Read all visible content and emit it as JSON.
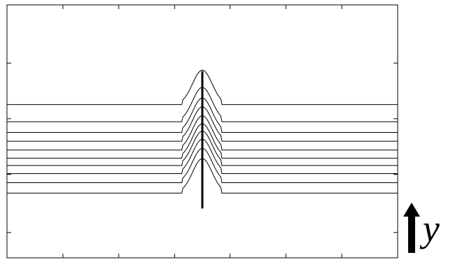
{
  "chart_data": {
    "type": "line",
    "x_range": [
      0,
      1
    ],
    "y_range": [
      0,
      1
    ],
    "x_ticks": [
      0,
      0.143,
      0.286,
      0.429,
      0.571,
      0.714,
      0.857,
      1
    ],
    "y_ticks": [
      0.1,
      0.33,
      0.55,
      0.77
    ],
    "grid": false,
    "bump": {
      "center": 0.5,
      "start_offset": 0.05,
      "width": 0.025,
      "height": 0.136
    },
    "series": [
      {
        "baseline": 0.606
      },
      {
        "baseline": 0.538
      },
      {
        "baseline": 0.496
      },
      {
        "baseline": 0.461
      },
      {
        "baseline": 0.426
      },
      {
        "baseline": 0.394
      },
      {
        "baseline": 0.365
      },
      {
        "baseline": 0.333
      },
      {
        "baseline": 0.297
      },
      {
        "baseline": 0.256
      }
    ],
    "marker": {
      "x": 0.5,
      "y_from": 0.195,
      "y_to": 0.738
    },
    "axis_label": "y",
    "axis_arrow": "up-arrow-icon"
  }
}
